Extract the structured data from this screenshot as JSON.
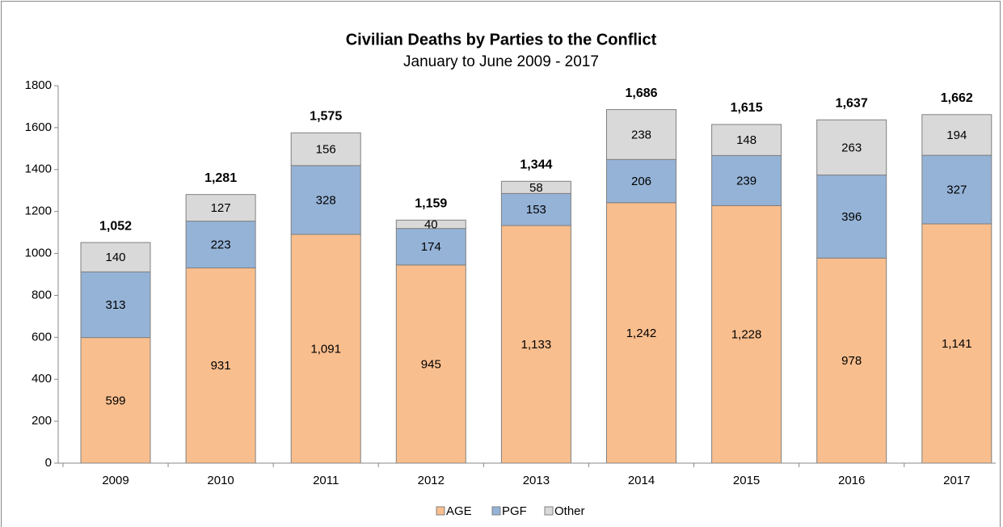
{
  "chart_data": {
    "type": "stacked_bar",
    "title": "Civilian Deaths by Parties to the Conflict",
    "subtitle": "January to June 2009 - 2017",
    "categories": [
      "2009",
      "2010",
      "2011",
      "2012",
      "2013",
      "2014",
      "2015",
      "2016",
      "2017"
    ],
    "series": [
      {
        "name": "AGE",
        "color": "#f9be8e",
        "values": [
          599,
          931,
          1091,
          945,
          1133,
          1242,
          1228,
          978,
          1141
        ],
        "value_labels": [
          "599",
          "931",
          "1,091",
          "945",
          "1,133",
          "1,242",
          "1,228",
          "978",
          "1,141"
        ]
      },
      {
        "name": "PGF",
        "color": "#95b3d7",
        "values": [
          313,
          223,
          328,
          174,
          153,
          206,
          239,
          396,
          327
        ]
      },
      {
        "name": "Other",
        "color": "#d9d9d9",
        "values": [
          140,
          127,
          156,
          40,
          58,
          238,
          148,
          263,
          194
        ]
      }
    ],
    "totals": {
      "values": [
        1052,
        1281,
        1575,
        1159,
        1344,
        1686,
        1615,
        1637,
        1662
      ],
      "value_labels": [
        "1,052",
        "1,281",
        "1,575",
        "1,159",
        "1,344",
        "1,686",
        "1,615",
        "1,637",
        "1,662"
      ]
    },
    "ylim": [
      0,
      1800
    ],
    "yticks": [
      0,
      200,
      400,
      600,
      800,
      1000,
      1200,
      1400,
      1600,
      1800
    ],
    "legend": "bottom"
  }
}
